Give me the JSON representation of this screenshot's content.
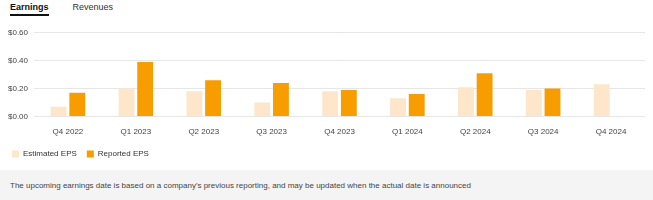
{
  "header": {
    "tabs": [
      "Earnings",
      "Revenues"
    ]
  },
  "chart_data": {
    "type": "bar",
    "categories": [
      "Q4 2022",
      "Q1 2023",
      "Q2 2023",
      "Q3 2023",
      "Q4 2023",
      "Q1 2024",
      "Q2 2024",
      "Q3 2024",
      "Q4 2024"
    ],
    "series": [
      {
        "name": "Estimated EPS",
        "color": "#fde6c9",
        "values": [
          0.07,
          0.2,
          0.18,
          0.1,
          0.18,
          0.13,
          0.21,
          0.19,
          0.23
        ]
      },
      {
        "name": "Reported EPS",
        "color": "#f79d00",
        "values": [
          0.17,
          0.39,
          0.26,
          0.24,
          0.19,
          0.16,
          0.31,
          0.2,
          null
        ]
      }
    ],
    "ylim": [
      0,
      0.6
    ],
    "yticks": [
      {
        "value": 0,
        "label": "$0.00"
      },
      {
        "value": 0.2,
        "label": "$0.20"
      },
      {
        "value": 0.4,
        "label": "$0.40"
      },
      {
        "value": 0.6,
        "label": "$0.60"
      }
    ],
    "grid": true,
    "legend": "bottom-left"
  },
  "footer": {
    "note": "The upcoming earnings date is based on a company's previous reporting, and may be updated when the actual date is announced"
  }
}
